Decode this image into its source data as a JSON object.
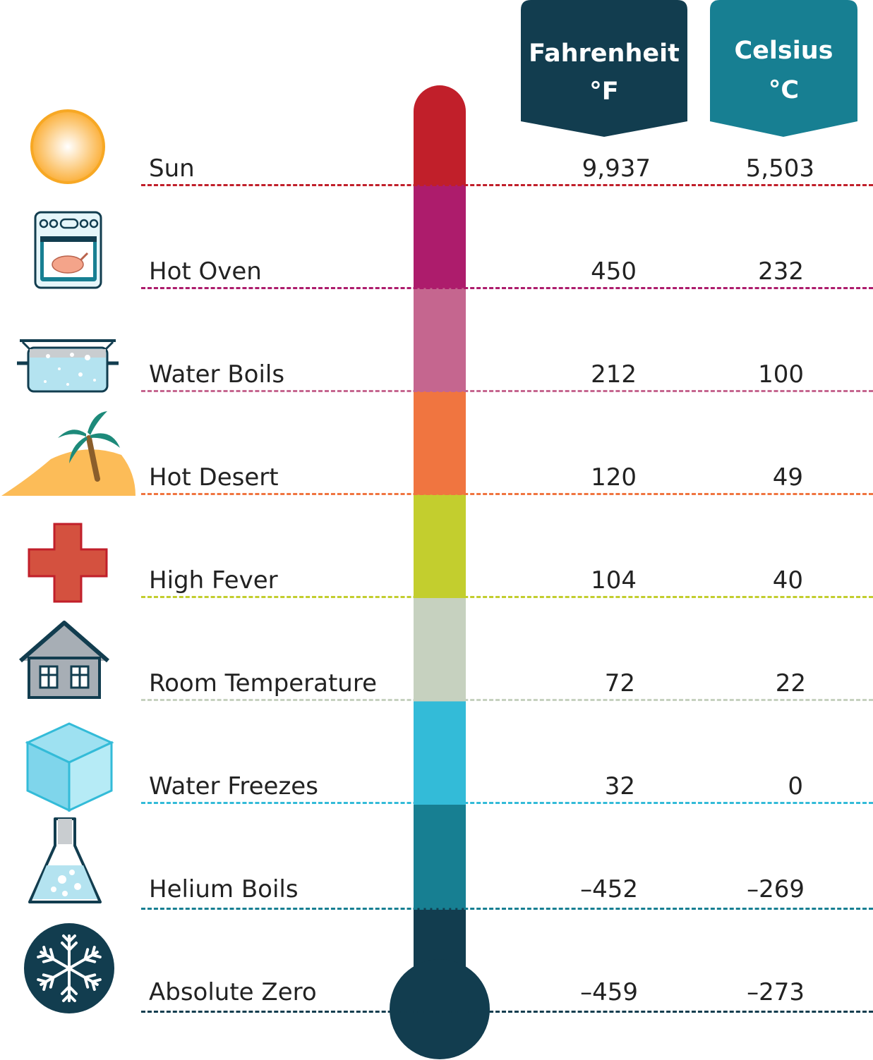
{
  "headers": {
    "fahrenheit": {
      "name": "Fahrenheit",
      "unit": "°F",
      "color": "#123d4f"
    },
    "celsius": {
      "name": "Celsius",
      "unit": "°C",
      "color": "#177f92"
    }
  },
  "rows": [
    {
      "label": "Sun",
      "fahrenheit": "9,937",
      "celsius": "5,503",
      "color": "#c11f2a",
      "icon": "sun-icon"
    },
    {
      "label": "Hot Oven",
      "fahrenheit": "450",
      "celsius": "232",
      "color": "#ad1c6c",
      "icon": "oven-icon"
    },
    {
      "label": "Water Boils",
      "fahrenheit": "212",
      "celsius": "100",
      "color": "#c5668f",
      "icon": "boiling-pot-icon"
    },
    {
      "label": "Hot Desert",
      "fahrenheit": "120",
      "celsius": "49",
      "color": "#f07540",
      "icon": "desert-island-icon"
    },
    {
      "label": "High Fever",
      "fahrenheit": "104",
      "celsius": "40",
      "color": "#c3ce2e",
      "icon": "medical-cross-icon"
    },
    {
      "label": "Room Temperature",
      "fahrenheit": "72",
      "celsius": "22",
      "color": "#c6d1bf",
      "icon": "house-icon"
    },
    {
      "label": "Water Freezes",
      "fahrenheit": "32",
      "celsius": "0",
      "color": "#33bbd8",
      "icon": "ice-cube-icon"
    },
    {
      "label": "Helium Boils",
      "fahrenheit": "–452",
      "celsius": "–269",
      "color": "#177f92",
      "icon": "flask-icon"
    },
    {
      "label": "Absolute Zero",
      "fahrenheit": "–459",
      "celsius": "–273",
      "color": "#123d4f",
      "icon": "snowflake-icon"
    }
  ]
}
